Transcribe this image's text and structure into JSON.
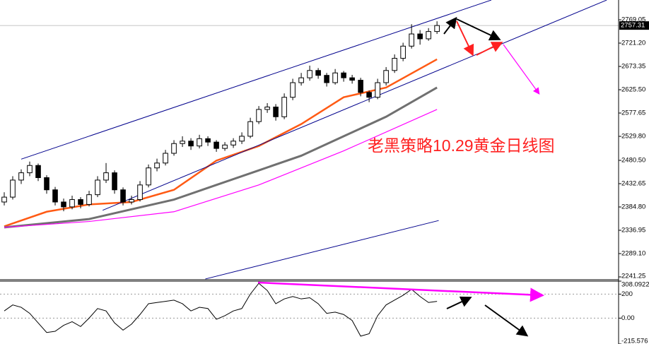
{
  "chart_data": [
    {
      "type": "candlestick",
      "annotation": "老黑策略10.29黄金日线图",
      "annotation_color": "#ff2020",
      "current_price": 2757.31,
      "xlim": [
        -0.5,
        72.4
      ],
      "ylim": [
        2236.9,
        2809.7
      ],
      "yticks": [
        2769.05,
        {
          "value": 2721.2,
          "label": "2721.20"
        },
        2673.35,
        {
          "value": 2625.5,
          "label": "2625.50"
        },
        2577.65,
        {
          "value": 2529.8,
          "label": "2529.80"
        },
        {
          "value": 2480.5,
          "label": "2480.50"
        },
        2432.65,
        {
          "value": 2384.8,
          "label": "2384.80"
        },
        2336.95,
        {
          "value": 2289.1,
          "label": "2289.10"
        },
        2241.25
      ],
      "candle_color": "#000000",
      "open": [
        2395,
        2405,
        2440,
        2455,
        2470,
        2445,
        2420,
        2395,
        2385,
        2400,
        2390,
        2410,
        2440,
        2455,
        2420,
        2395,
        2400,
        2430,
        2465,
        2475,
        2495,
        2515,
        2520,
        2510,
        2525,
        2518,
        2505,
        2512,
        2520,
        2530,
        2560,
        2585,
        2590,
        2570,
        2610,
        2640,
        2650,
        2665,
        2655,
        2640,
        2660,
        2650,
        2645,
        2620,
        2610,
        2640,
        2665,
        2690,
        2715,
        2740,
        2730,
        2745
      ],
      "high": [
        2415,
        2448,
        2462,
        2478,
        2474,
        2450,
        2426,
        2402,
        2408,
        2405,
        2418,
        2448,
        2475,
        2460,
        2425,
        2408,
        2438,
        2472,
        2484,
        2502,
        2522,
        2530,
        2526,
        2533,
        2530,
        2522,
        2518,
        2526,
        2538,
        2568,
        2592,
        2598,
        2596,
        2618,
        2648,
        2660,
        2675,
        2670,
        2660,
        2668,
        2664,
        2656,
        2650,
        2624,
        2648,
        2672,
        2698,
        2722,
        2760,
        2748,
        2752,
        2766
      ],
      "low": [
        2388,
        2400,
        2432,
        2448,
        2438,
        2412,
        2388,
        2376,
        2380,
        2382,
        2386,
        2405,
        2434,
        2412,
        2388,
        2390,
        2396,
        2425,
        2458,
        2470,
        2490,
        2508,
        2502,
        2505,
        2510,
        2498,
        2500,
        2506,
        2514,
        2526,
        2555,
        2578,
        2562,
        2565,
        2604,
        2634,
        2644,
        2648,
        2632,
        2636,
        2642,
        2638,
        2612,
        2600,
        2606,
        2634,
        2660,
        2684,
        2710,
        2718,
        2726,
        2740
      ],
      "close": [
        2405,
        2440,
        2455,
        2470,
        2445,
        2420,
        2395,
        2385,
        2400,
        2390,
        2410,
        2440,
        2455,
        2420,
        2395,
        2400,
        2430,
        2465,
        2475,
        2495,
        2515,
        2520,
        2510,
        2525,
        2518,
        2505,
        2512,
        2520,
        2530,
        2560,
        2585,
        2590,
        2570,
        2610,
        2640,
        2650,
        2665,
        2655,
        2640,
        2660,
        2650,
        2645,
        2620,
        2610,
        2640,
        2665,
        2690,
        2715,
        2740,
        2730,
        2745,
        2757.31
      ],
      "lines": [
        {
          "color": "#ff5a14",
          "width": 2.5,
          "x": [
            0,
            5,
            10,
            15,
            20,
            25,
            30,
            35,
            40,
            45,
            51
          ],
          "values": [
            2345,
            2375,
            2390,
            2395,
            2420,
            2480,
            2510,
            2555,
            2610,
            2630,
            2688
          ]
        },
        {
          "color": "#707070",
          "width": 3,
          "x": [
            0,
            10,
            15,
            20,
            25,
            30,
            35,
            40,
            45,
            51
          ],
          "values": [
            2343,
            2360,
            2380,
            2400,
            2430,
            2460,
            2490,
            2530,
            2570,
            2630
          ]
        },
        {
          "color": "#ff00ff",
          "width": 1.2,
          "x": [
            0,
            10,
            20,
            30,
            40,
            51
          ],
          "values": [
            2343,
            2355,
            2375,
            2430,
            2500,
            2585
          ]
        },
        {
          "color": "#00008c",
          "width": 1,
          "x": [
            2,
            57.4
          ],
          "values": [
            2483,
            2809.6
          ]
        },
        {
          "color": "#00008c",
          "width": 1,
          "x": [
            11.6,
            71.0
          ],
          "values": [
            2378,
            2809.6
          ]
        },
        {
          "color": "#00008c",
          "width": 1,
          "x": [
            23.7,
            51.2
          ],
          "values": [
            2237,
            2357
          ]
        }
      ]
    },
    {
      "type": "line",
      "xlim": [
        -0.5,
        72.4
      ],
      "ylim": [
        -215.576,
        308.0922
      ],
      "yticks": [
        308.0922,
        200,
        {
          "value": 0,
          "label": "0.00"
        },
        -215.576
      ],
      "series": [
        {
          "color": "#000000",
          "values": [
            60,
            110,
            90,
            40,
            -40,
            -120,
            -110,
            -60,
            -30,
            -70,
            0,
            80,
            60,
            -40,
            -100,
            -50,
            30,
            120,
            130,
            140,
            150,
            120,
            60,
            90,
            80,
            -10,
            20,
            60,
            80,
            200,
            290,
            230,
            120,
            160,
            180,
            160,
            170,
            120,
            40,
            50,
            30,
            -20,
            -150,
            -130,
            20,
            110,
            150,
            190,
            240,
            180,
            130,
            140
          ]
        }
      ]
    }
  ]
}
